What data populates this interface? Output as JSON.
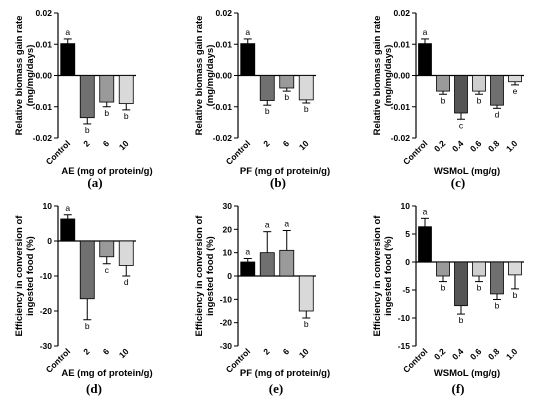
{
  "chart_data": [
    {
      "type": "bar",
      "panel_label": "(a)",
      "ylabel": "Relative biomass gain rate (mg/mg/days)",
      "xlabel": "AE (mg of protein/g)",
      "categories": [
        "Control",
        "2",
        "6",
        "10"
      ],
      "values": [
        0.0102,
        -0.0135,
        -0.0085,
        -0.009
      ],
      "errors": [
        0.0015,
        0.002,
        0.0015,
        0.002
      ],
      "letters": [
        "a",
        "b",
        "b",
        "b"
      ],
      "ylim": [
        -0.02,
        0.02
      ],
      "yticks": [
        -0.02,
        -0.01,
        0,
        0.01,
        0.02
      ],
      "ytick_labels": [
        "-0.02",
        "-0.01",
        "0.00",
        "0.01",
        "0.02"
      ],
      "colors": [
        "#000000",
        "#707070",
        "#9a9a9a",
        "#d9d9d9"
      ]
    },
    {
      "type": "bar",
      "panel_label": "(b)",
      "ylabel": "Relative biomass gain rate (mg/mg/days)",
      "xlabel": "PF (mg of protein/g)",
      "categories": [
        "Control",
        "2",
        "6",
        "10"
      ],
      "values": [
        0.0102,
        -0.008,
        -0.004,
        -0.0078
      ],
      "errors": [
        0.0015,
        0.0015,
        0.001,
        0.001
      ],
      "letters": [
        "a",
        "b",
        "b",
        "b"
      ],
      "ylim": [
        -0.02,
        0.02
      ],
      "yticks": [
        -0.02,
        -0.01,
        0,
        0.01,
        0.02
      ],
      "ytick_labels": [
        "-0.02",
        "-0.01",
        "0.00",
        "0.01",
        "0.02"
      ],
      "colors": [
        "#000000",
        "#707070",
        "#9a9a9a",
        "#d9d9d9"
      ]
    },
    {
      "type": "bar",
      "panel_label": "(c)",
      "ylabel": "Relative biomass gain rate (mg/mg/days)",
      "xlabel": "WSMoL (mg/g)",
      "categories": [
        "Control",
        "0.2",
        "0.4",
        "0.6",
        "0.8",
        "1.0"
      ],
      "values": [
        0.0102,
        -0.005,
        -0.012,
        -0.005,
        -0.0095,
        -0.002
      ],
      "errors": [
        0.0015,
        0.001,
        0.002,
        0.001,
        0.001,
        0.001
      ],
      "letters": [
        "a",
        "b",
        "c",
        "b",
        "d",
        "e"
      ],
      "ylim": [
        -0.02,
        0.02
      ],
      "yticks": [
        -0.02,
        -0.01,
        0,
        0.01,
        0.02
      ],
      "ytick_labels": [
        "-0.02",
        "-0.01",
        "0.00",
        "0.01",
        "0.02"
      ],
      "colors": [
        "#000000",
        "#9a9a9a",
        "#555555",
        "#cfcfcf",
        "#707070",
        "#d9d9d9"
      ]
    },
    {
      "type": "bar",
      "panel_label": "(d)",
      "ylabel": "Efficiency in conversion of ingested food (%)",
      "xlabel": "AE (mg of protein/g)",
      "categories": [
        "Control",
        "2",
        "6",
        "10"
      ],
      "values": [
        6.3,
        -16.5,
        -4.5,
        -7.0
      ],
      "errors": [
        1.2,
        6.0,
        2.0,
        3.0
      ],
      "letters": [
        "a",
        "b",
        "c",
        "d"
      ],
      "ylim": [
        -30,
        10
      ],
      "yticks": [
        -30,
        -20,
        -10,
        0,
        10
      ],
      "ytick_labels": [
        "-30",
        "-20",
        "-10",
        "0",
        "10"
      ],
      "colors": [
        "#000000",
        "#707070",
        "#9a9a9a",
        "#d9d9d9"
      ]
    },
    {
      "type": "bar",
      "panel_label": "(e)",
      "ylabel": "Efficiency in conversion of ingested food (%)",
      "xlabel": "PF (mg of protein/g)",
      "categories": [
        "Control",
        "2",
        "6",
        "10"
      ],
      "values": [
        6.0,
        10.0,
        11.0,
        -15.0
      ],
      "errors": [
        1.5,
        9.0,
        8.5,
        3.0
      ],
      "letters": [
        "a",
        "a",
        "a",
        "b"
      ],
      "ylim": [
        -30,
        30
      ],
      "yticks": [
        -30,
        -20,
        -10,
        0,
        10,
        20,
        30
      ],
      "ytick_labels": [
        "-30",
        "-20",
        "-10",
        "0",
        "10",
        "20",
        "30"
      ],
      "colors": [
        "#000000",
        "#707070",
        "#9a9a9a",
        "#d9d9d9"
      ]
    },
    {
      "type": "bar",
      "panel_label": "(f)",
      "ylabel": "Efficiency in conversion of ingested food (%)",
      "xlabel": "WSMoL (mg/g)",
      "categories": [
        "Control",
        "0.2",
        "0.4",
        "0.6",
        "0.8",
        "1.0"
      ],
      "values": [
        6.3,
        -2.5,
        -7.8,
        -2.5,
        -5.7,
        -2.3
      ],
      "errors": [
        1.5,
        1.0,
        1.5,
        1.0,
        1.0,
        2.5
      ],
      "letters": [
        "a",
        "b",
        "b",
        "b",
        "b",
        "b"
      ],
      "ylim": [
        -15,
        10
      ],
      "yticks": [
        -15,
        -10,
        -5,
        0,
        5,
        10
      ],
      "ytick_labels": [
        "-15",
        "-10",
        "-5",
        "0",
        "5",
        "10"
      ],
      "colors": [
        "#000000",
        "#9a9a9a",
        "#555555",
        "#cfcfcf",
        "#707070",
        "#d9d9d9"
      ]
    }
  ]
}
